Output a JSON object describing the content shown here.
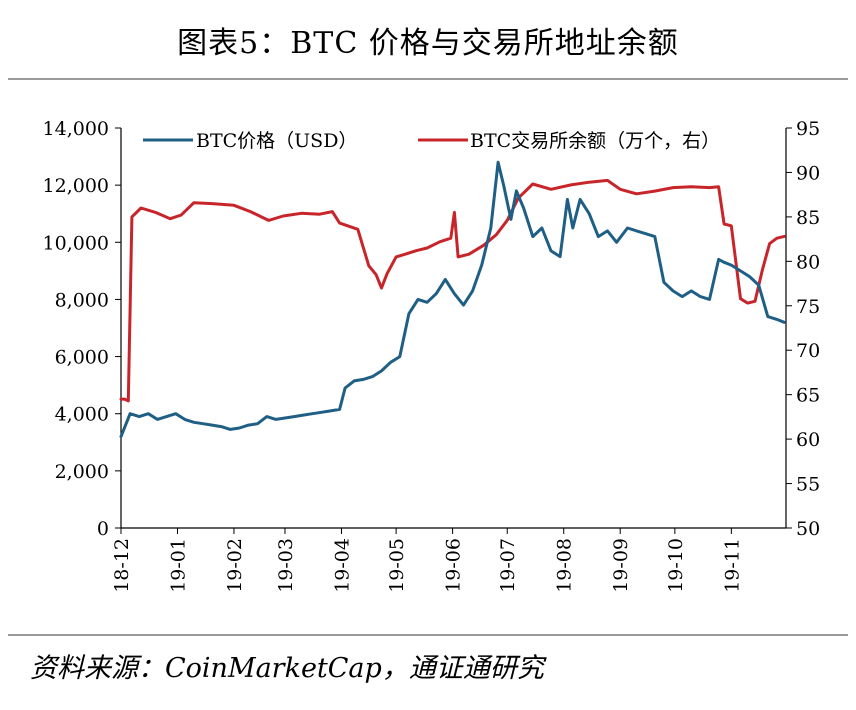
{
  "title": "图表5：BTC 价格与交易所地址余额",
  "source": "资料来源：CoinMarketCap，通证通研究",
  "colors": {
    "price": "#1f5f86",
    "balance": "#c8252b",
    "axis": "#000000"
  },
  "chart_data": {
    "type": "line",
    "title": "图表5：BTC 价格与交易所地址余额",
    "xlabel": "",
    "ylabel": "",
    "x_ticks": [
      "18-12",
      "19-01",
      "19-02",
      "19-03",
      "19-04",
      "19-05",
      "19-06",
      "19-07",
      "19-08",
      "19-09",
      "19-10",
      "19-11"
    ],
    "x_range": [
      "2018-12-01",
      "2019-12-01"
    ],
    "left_axis": {
      "ylim": [
        0,
        14000
      ],
      "ticks": [
        0,
        2000,
        4000,
        6000,
        8000,
        10000,
        12000,
        14000
      ],
      "tick_labels": [
        "0",
        "2,000",
        "4,000",
        "6,000",
        "8,000",
        "10,000",
        "12,000",
        "14,000"
      ]
    },
    "right_axis": {
      "ylim": [
        50,
        95
      ],
      "ticks": [
        50,
        55,
        60,
        65,
        70,
        75,
        80,
        85,
        90,
        95
      ],
      "tick_labels": [
        "50",
        "55",
        "60",
        "65",
        "70",
        "75",
        "80",
        "85",
        "90",
        "95"
      ]
    },
    "legend_position": "top",
    "series": [
      {
        "name": "BTC价格（USD）",
        "axis": "left",
        "color": "#1f5f86",
        "x": [
          "2018-12-01",
          "2018-12-06",
          "2018-12-11",
          "2018-12-16",
          "2018-12-21",
          "2018-12-26",
          "2018-12-31",
          "2019-01-05",
          "2019-01-10",
          "2019-01-15",
          "2019-01-20",
          "2019-01-25",
          "2019-01-30",
          "2019-02-04",
          "2019-02-09",
          "2019-02-14",
          "2019-02-19",
          "2019-02-24",
          "2019-03-01",
          "2019-03-06",
          "2019-03-11",
          "2019-03-16",
          "2019-03-21",
          "2019-03-26",
          "2019-03-31",
          "2019-04-03",
          "2019-04-08",
          "2019-04-13",
          "2019-04-18",
          "2019-04-23",
          "2019-04-28",
          "2019-05-03",
          "2019-05-08",
          "2019-05-13",
          "2019-05-18",
          "2019-05-23",
          "2019-05-28",
          "2019-06-02",
          "2019-06-07",
          "2019-06-12",
          "2019-06-17",
          "2019-06-22",
          "2019-06-26",
          "2019-06-29",
          "2019-07-03",
          "2019-07-06",
          "2019-07-10",
          "2019-07-15",
          "2019-07-20",
          "2019-07-25",
          "2019-07-30",
          "2019-08-03",
          "2019-08-06",
          "2019-08-10",
          "2019-08-15",
          "2019-08-20",
          "2019-08-25",
          "2019-08-30",
          "2019-09-05",
          "2019-09-10",
          "2019-09-15",
          "2019-09-20",
          "2019-09-25",
          "2019-09-30",
          "2019-10-05",
          "2019-10-10",
          "2019-10-15",
          "2019-10-20",
          "2019-10-25",
          "2019-10-28",
          "2019-11-01",
          "2019-11-06",
          "2019-11-11",
          "2019-11-16",
          "2019-11-21",
          "2019-11-26",
          "2019-11-30"
        ],
        "values": [
          3200,
          4000,
          3900,
          4000,
          3800,
          3900,
          4000,
          3800,
          3700,
          3650,
          3600,
          3550,
          3450,
          3500,
          3600,
          3650,
          3900,
          3800,
          3850,
          3900,
          3950,
          4000,
          4050,
          4100,
          4150,
          4900,
          5150,
          5200,
          5300,
          5500,
          5800,
          6000,
          7500,
          8000,
          7900,
          8200,
          8700,
          8200,
          7800,
          8300,
          9200,
          10500,
          12800,
          12000,
          10800,
          11800,
          11200,
          10200,
          10500,
          9700,
          9500,
          11500,
          10500,
          11500,
          11000,
          10200,
          10400,
          10000,
          10500,
          10400,
          10300,
          10200,
          8600,
          8300,
          8100,
          8300,
          8100,
          8000,
          9400,
          9300,
          9200,
          9000,
          8800,
          8500,
          7400,
          7300,
          7200
        ]
      },
      {
        "name": "BTC交易所余额（万个，右）",
        "axis": "right",
        "color": "#c8252b",
        "x": [
          "2018-12-01",
          "2018-12-03",
          "2018-12-05",
          "2018-12-07",
          "2018-12-12",
          "2018-12-20",
          "2018-12-28",
          "2019-01-03",
          "2019-01-10",
          "2019-01-20",
          "2019-02-01",
          "2019-02-10",
          "2019-02-20",
          "2019-02-28",
          "2019-03-10",
          "2019-03-20",
          "2019-03-27",
          "2019-03-31",
          "2019-04-03",
          "2019-04-10",
          "2019-04-16",
          "2019-04-20",
          "2019-04-23",
          "2019-04-26",
          "2019-05-01",
          "2019-05-06",
          "2019-05-12",
          "2019-05-18",
          "2019-05-25",
          "2019-05-31",
          "2019-06-02",
          "2019-06-04",
          "2019-06-10",
          "2019-06-18",
          "2019-06-25",
          "2019-07-01",
          "2019-07-07",
          "2019-07-15",
          "2019-07-25",
          "2019-08-05",
          "2019-08-15",
          "2019-08-25",
          "2019-09-01",
          "2019-09-10",
          "2019-09-20",
          "2019-09-30",
          "2019-10-10",
          "2019-10-20",
          "2019-10-25",
          "2019-10-28",
          "2019-11-01",
          "2019-11-06",
          "2019-11-10",
          "2019-11-14",
          "2019-11-18",
          "2019-11-22",
          "2019-11-26",
          "2019-11-30"
        ],
        "values": [
          64.5,
          64.5,
          64.3,
          85,
          86,
          85.5,
          84.8,
          85.2,
          86.6,
          86.5,
          86.3,
          85.6,
          84.6,
          85.1,
          85.4,
          85.3,
          85.6,
          84.3,
          84.1,
          83.6,
          79.5,
          78.5,
          77.0,
          78.6,
          80.5,
          80.8,
          81.2,
          81.5,
          82.2,
          82.6,
          85.5,
          80.5,
          80.8,
          81.8,
          83.0,
          84.6,
          87.1,
          88.7,
          88.1,
          88.6,
          88.9,
          89.1,
          88.1,
          87.6,
          87.9,
          88.3,
          88.4,
          88.3,
          88.4,
          84.2,
          84.0,
          75.8,
          75.3,
          75.5,
          79.0,
          82.0,
          82.6,
          82.8
        ]
      }
    ]
  }
}
